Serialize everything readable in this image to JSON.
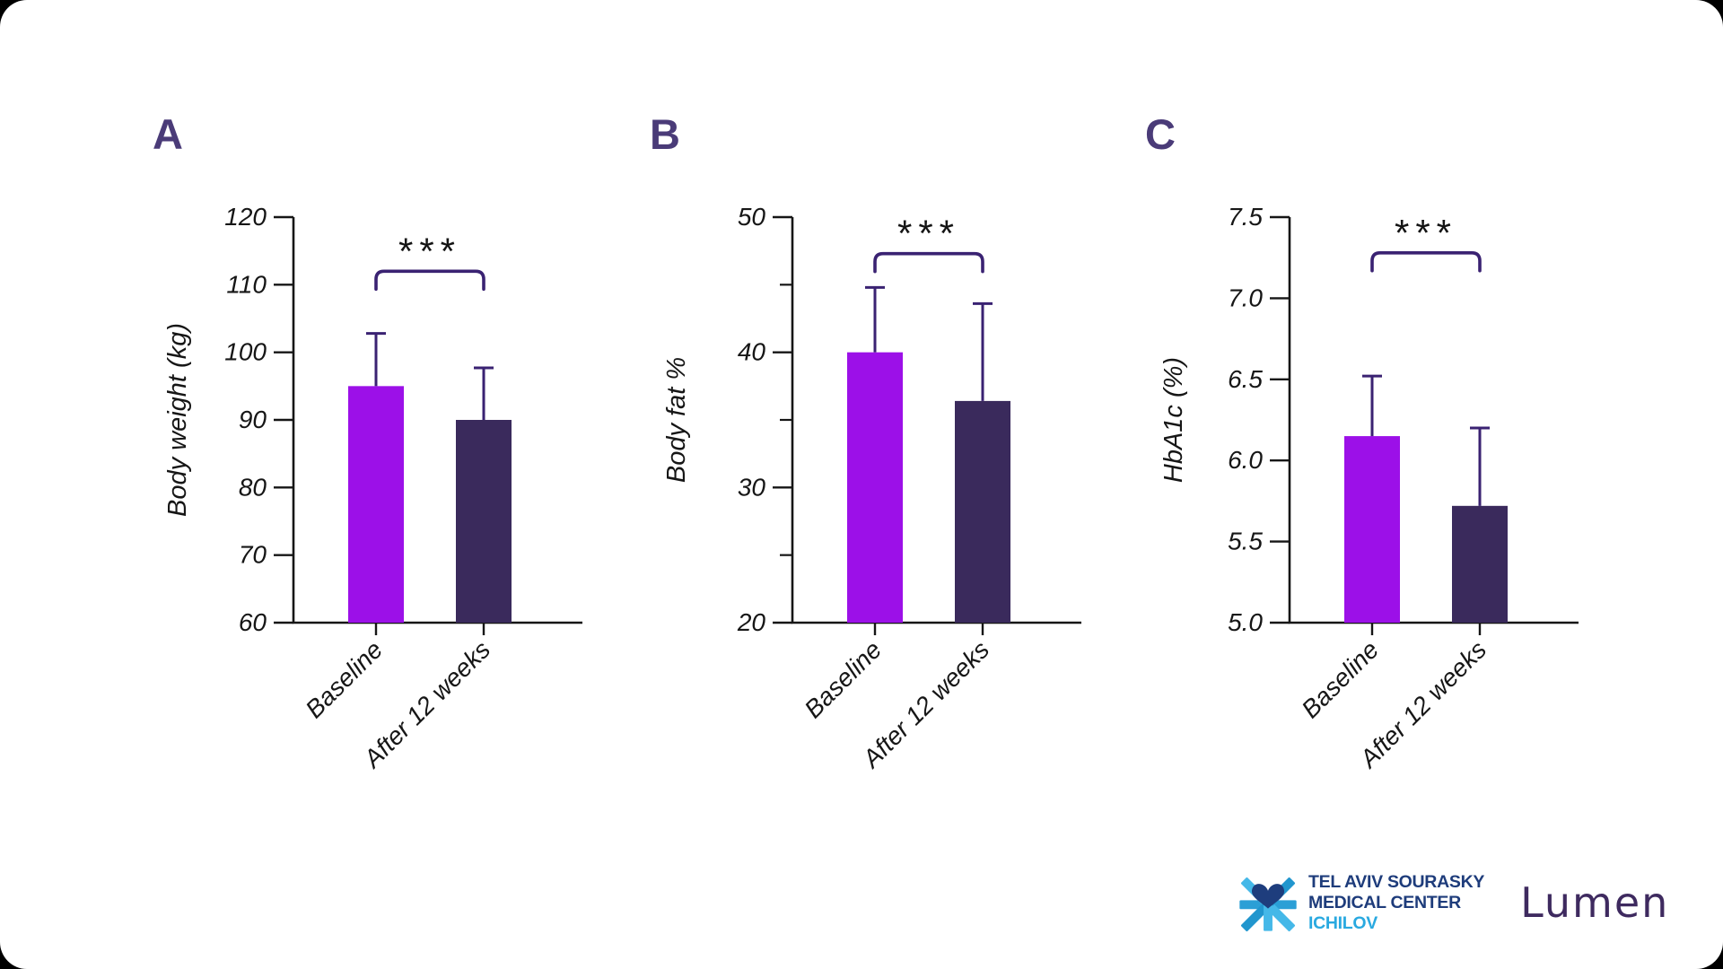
{
  "page": {
    "background": "#000000",
    "card_color": "#ffffff"
  },
  "colors": {
    "bar_baseline": "#9C10E8",
    "bar_after": "#3A2A5C",
    "error_bar": "#3A2272",
    "bracket": "#3A2272",
    "stars": "#141414",
    "axis": "#161616",
    "panel_letter": "#4A3B78"
  },
  "chart_data": [
    {
      "panel": "A",
      "type": "bar",
      "title": "",
      "xlabel": "",
      "ylabel": "Body weight (kg)",
      "ylim": [
        60,
        120
      ],
      "ytick_values": [
        60,
        70,
        80,
        90,
        100,
        110,
        120
      ],
      "ytick_labels": [
        "60",
        "70",
        "80",
        "90",
        "100",
        "110",
        "120"
      ],
      "minor_tick_values": [],
      "categories": [
        "Baseline",
        "After 12 weeks"
      ],
      "series": [
        {
          "name": "Baseline",
          "value": 95.0,
          "error_top": 102.8
        },
        {
          "name": "After 12 weeks",
          "value": 90.0,
          "error_top": 97.7
        }
      ],
      "significance": {
        "label": "***",
        "from": "Baseline",
        "to": "After 12 weeks",
        "bracket_y": 112.0
      },
      "legend": "none",
      "grid": "off"
    },
    {
      "panel": "B",
      "type": "bar",
      "title": "",
      "xlabel": "",
      "ylabel": "Body fat %",
      "ylim": [
        20,
        50
      ],
      "ytick_values": [
        20,
        30,
        40,
        50
      ],
      "ytick_labels": [
        "20",
        "30",
        "40",
        "50"
      ],
      "minor_tick_values": [
        25,
        35,
        45
      ],
      "categories": [
        "Baseline",
        "After 12 weeks"
      ],
      "series": [
        {
          "name": "Baseline",
          "value": 40.0,
          "error_top": 44.8
        },
        {
          "name": "After 12 weeks",
          "value": 36.4,
          "error_top": 43.6
        }
      ],
      "significance": {
        "label": "***",
        "from": "Baseline",
        "to": "After 12 weeks",
        "bracket_y": 47.3
      },
      "legend": "none",
      "grid": "off"
    },
    {
      "panel": "C",
      "type": "bar",
      "title": "",
      "xlabel": "",
      "ylabel": "HbA1c (%)",
      "ylim": [
        5.0,
        7.5
      ],
      "ytick_values": [
        5.0,
        5.5,
        6.0,
        6.5,
        7.0,
        7.5
      ],
      "ytick_labels": [
        "5.0",
        "5.5",
        "6.0",
        "6.5",
        "7.0",
        "7.5"
      ],
      "minor_tick_values": [],
      "categories": [
        "Baseline",
        "After 12 weeks"
      ],
      "series": [
        {
          "name": "Baseline",
          "value": 6.15,
          "error_top": 6.52
        },
        {
          "name": "After 12 weeks",
          "value": 5.72,
          "error_top": 6.2
        }
      ],
      "significance": {
        "label": "***",
        "from": "Baseline",
        "to": "After 12 weeks",
        "bracket_y": 7.28
      },
      "legend": "none",
      "grid": "off"
    }
  ],
  "branding": {
    "hospital": {
      "icon": "heart-asterisk-icon",
      "line1": "TEL AVIV SOURASKY",
      "line2": "MEDICAL CENTER",
      "line3": "ICHILOV",
      "text_color": "#1E3C7B",
      "accent_color": "#29A9E0",
      "icon_heart_color": "#1E3D7D",
      "icon_arm_light": "#45B8E8",
      "icon_arm_mid": "#2196CE"
    },
    "partner": {
      "wordmark": "Lumen",
      "color": "#3E2A5F"
    }
  }
}
